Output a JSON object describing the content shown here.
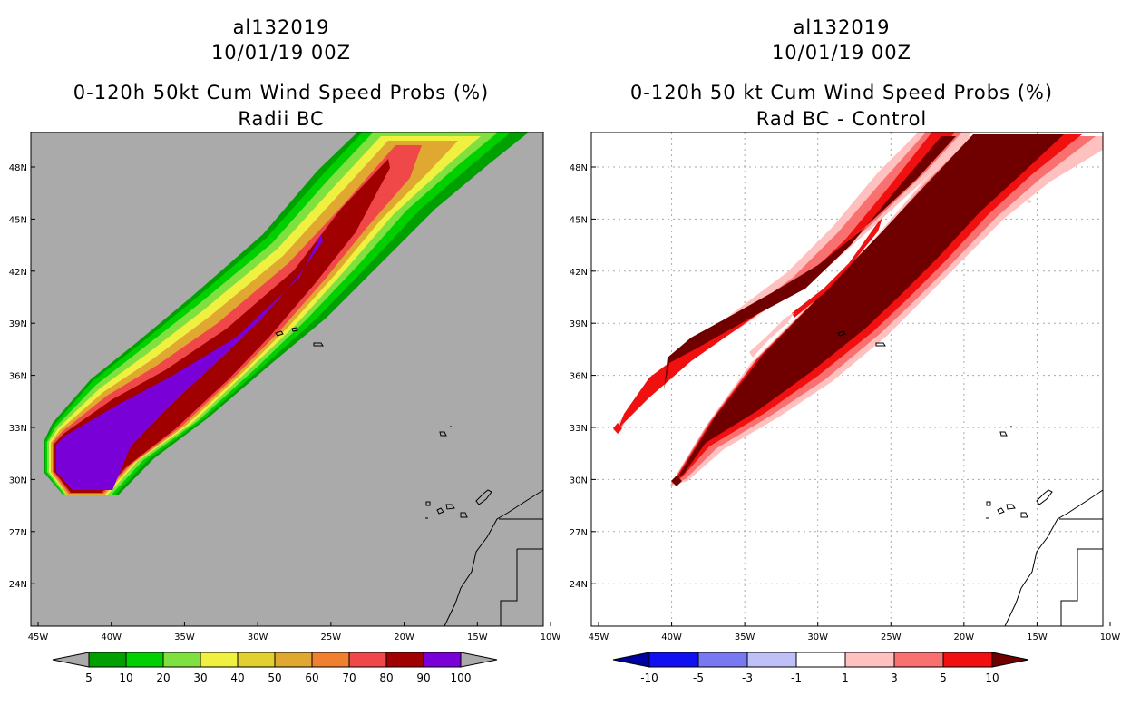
{
  "left_panel": {
    "title_line1": "al132019",
    "title_line2": "10/01/19 00Z",
    "title_line3": "0-120h 50kt Cum Wind Speed Probs (%)",
    "title_line4": "Radii BC",
    "legend_labels": [
      "5",
      "10",
      "20",
      "30",
      "40",
      "50",
      "60",
      "70",
      "80",
      "90",
      "100"
    ],
    "legend_colors": [
      "#00a000",
      "#00d000",
      "#80e040",
      "#f0f040",
      "#e0d030",
      "#e0a830",
      "#f08030",
      "#f04848",
      "#a00000",
      "#7a00d8"
    ],
    "background_color": "#aaaaaa"
  },
  "right_panel": {
    "title_line1": "al132019",
    "title_line2": "10/01/19 00Z",
    "title_line3": "0-120h 50 kt Cum Wind Speed Probs (%)",
    "title_line4": "Rad BC - Control",
    "legend_labels": [
      "-10",
      "-5",
      "-3",
      "-1",
      "1",
      "3",
      "5",
      "10"
    ],
    "legend_colors": [
      "#0000a0",
      "#1010f0",
      "#7878f0",
      "#c0c0f8",
      "#ffffff",
      "#ffc0c0",
      "#f87070",
      "#f01010",
      "#700000"
    ]
  },
  "map": {
    "lat_labels": [
      "48N",
      "45N",
      "42N",
      "39N",
      "36N",
      "33N",
      "30N",
      "27N",
      "24N"
    ],
    "lon_labels": [
      "45W",
      "40W",
      "35W",
      "30W",
      "25W",
      "20W",
      "15W",
      "10W"
    ]
  }
}
